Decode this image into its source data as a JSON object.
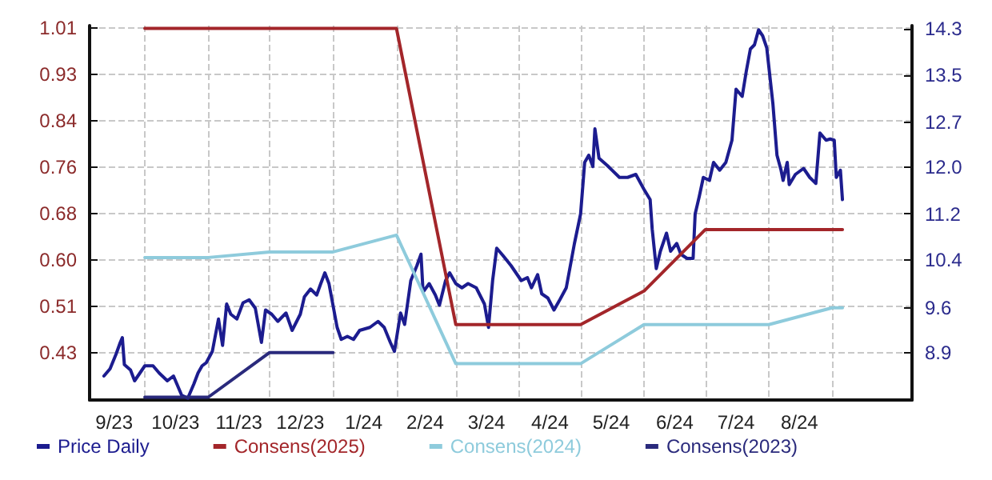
{
  "chart_data": {
    "type": "line",
    "xlim": [
      "2023-09-04",
      "2024-10-10"
    ],
    "xticks": [
      {
        "value": "2023-09-16",
        "label": "9/23"
      },
      {
        "value": "2023-10-16",
        "label": "10/23"
      },
      {
        "value": "2023-11-16",
        "label": "11/23"
      },
      {
        "value": "2023-12-16",
        "label": "12/23"
      },
      {
        "value": "2024-01-16",
        "label": "1/24"
      },
      {
        "value": "2024-02-15",
        "label": "2/24"
      },
      {
        "value": "2024-03-16",
        "label": "3/24"
      },
      {
        "value": "2024-04-16",
        "label": "4/24"
      },
      {
        "value": "2024-05-16",
        "label": "5/24"
      },
      {
        "value": "2024-06-16",
        "label": "6/24"
      },
      {
        "value": "2024-07-16",
        "label": "7/24"
      },
      {
        "value": "2024-08-16",
        "label": "8/24"
      },
      {
        "value": "2023-10-01",
        "label": null
      },
      {
        "value": "2023-11-01",
        "label": null
      },
      {
        "value": "2023-12-01",
        "label": null
      },
      {
        "value": "2024-01-01",
        "label": null
      },
      {
        "value": "2024-02-01",
        "label": null
      },
      {
        "value": "2024-03-01",
        "label": null
      },
      {
        "value": "2024-04-01",
        "label": null
      },
      {
        "value": "2024-05-01",
        "label": null
      },
      {
        "value": "2024-06-01",
        "label": null
      },
      {
        "value": "2024-07-01",
        "label": null
      },
      {
        "value": "2024-08-01",
        "label": null
      },
      {
        "value": "2024-09-01",
        "label": null
      }
    ],
    "ylim": [
      0.345,
      1.015
    ],
    "yticks": [
      0.43,
      {
        "value": 0.513,
        "label": "0.51"
      },
      {
        "value": 0.596,
        "label": "0.60"
      },
      {
        "value": 0.679,
        "label": "0.68"
      },
      {
        "value": 0.761,
        "label": "0.76"
      },
      {
        "value": 0.844,
        "label": "0.84"
      },
      {
        "value": 0.927,
        "label": "0.93"
      },
      1.01
    ],
    "y2lim": [
      8.11,
      14.35
    ],
    "y2ticks": [
      8.9,
      {
        "value": 9.64,
        "label": "9.6"
      },
      {
        "value": 10.44,
        "label": "10.4"
      },
      {
        "value": 11.21,
        "label": "11.2"
      },
      {
        "value": 11.99,
        "label": "12.0"
      },
      {
        "value": 12.74,
        "label": "12.7"
      },
      {
        "value": 13.53,
        "label": "13.5"
      },
      14.3
    ],
    "grid": true,
    "legend": "bottom",
    "marker": "none",
    "line_style": "solid",
    "series": [
      {
        "name": "Price Daily",
        "color": "#1c1c8f",
        "axis": "y2",
        "x": [
          "2023-09-11",
          "2023-09-14",
          "2023-09-17",
          "2023-09-19",
          "2023-09-20",
          "2023-09-21",
          "2023-09-24",
          "2023-09-26",
          "2023-09-28",
          "2023-10-01",
          "2023-10-05",
          "2023-10-08",
          "2023-10-12",
          "2023-10-15",
          "2023-10-19",
          "2023-10-22",
          "2023-10-25",
          "2023-10-27",
          "2023-10-29",
          "2023-10-31",
          "2023-11-03",
          "2023-11-06",
          "2023-11-08",
          "2023-11-10",
          "2023-11-12",
          "2023-11-15",
          "2023-11-18",
          "2023-11-21",
          "2023-11-24",
          "2023-11-27",
          "2023-11-29",
          "2023-12-02",
          "2023-12-05",
          "2023-12-09",
          "2023-12-12",
          "2023-12-16",
          "2023-12-18",
          "2023-12-21",
          "2023-12-24",
          "2023-12-26",
          "2023-12-28",
          "2023-12-30",
          "2024-01-03",
          "2024-01-05",
          "2024-01-08",
          "2024-01-11",
          "2024-01-14",
          "2024-01-19",
          "2024-01-23",
          "2024-01-26",
          "2024-01-29",
          "2024-01-31",
          "2024-02-03",
          "2024-02-05",
          "2024-02-08",
          "2024-02-11",
          "2024-02-13",
          "2024-02-14",
          "2024-02-17",
          "2024-02-20",
          "2024-02-22",
          "2024-02-25",
          "2024-02-27",
          "2024-03-01",
          "2024-03-04",
          "2024-03-07",
          "2024-03-11",
          "2024-03-15",
          "2024-03-17",
          "2024-03-19",
          "2024-03-21",
          "2024-03-24",
          "2024-03-28",
          "2024-04-02",
          "2024-04-05",
          "2024-04-07",
          "2024-04-10",
          "2024-04-12",
          "2024-04-15",
          "2024-04-18",
          "2024-04-21",
          "2024-04-24",
          "2024-04-28",
          "2024-05-01",
          "2024-05-03",
          "2024-05-05",
          "2024-05-07",
          "2024-05-08",
          "2024-05-10",
          "2024-05-14",
          "2024-05-20",
          "2024-05-24",
          "2024-05-28",
          "2024-06-01",
          "2024-06-04",
          "2024-06-05",
          "2024-06-07",
          "2024-06-09",
          "2024-06-12",
          "2024-06-14",
          "2024-06-17",
          "2024-06-19",
          "2024-06-22",
          "2024-06-25",
          "2024-06-26",
          "2024-06-28",
          "2024-06-30",
          "2024-07-03",
          "2024-07-05",
          "2024-07-08",
          "2024-07-11",
          "2024-07-14",
          "2024-07-16",
          "2024-07-19",
          "2024-07-21",
          "2024-07-23",
          "2024-07-25",
          "2024-07-27",
          "2024-07-29",
          "2024-07-31",
          "2024-08-03",
          "2024-08-05",
          "2024-08-07",
          "2024-08-08",
          "2024-08-10",
          "2024-08-11",
          "2024-08-14",
          "2024-08-18",
          "2024-08-21",
          "2024-08-24",
          "2024-08-26",
          "2024-08-29",
          "2024-08-31",
          "2024-09-02",
          "2024-09-03",
          "2024-09-05",
          "2024-09-06"
        ],
        "values": [
          8.51,
          8.63,
          8.88,
          9.07,
          9.15,
          8.7,
          8.61,
          8.43,
          8.53,
          8.68,
          8.68,
          8.56,
          8.43,
          8.51,
          8.19,
          8.14,
          8.38,
          8.56,
          8.68,
          8.73,
          8.92,
          9.46,
          9.02,
          9.71,
          9.54,
          9.46,
          9.73,
          9.78,
          9.64,
          9.07,
          9.61,
          9.54,
          9.42,
          9.56,
          9.27,
          9.54,
          9.83,
          9.96,
          9.86,
          10.05,
          10.23,
          10.05,
          9.32,
          9.12,
          9.17,
          9.12,
          9.27,
          9.32,
          9.42,
          9.32,
          9.07,
          8.92,
          9.56,
          9.37,
          10.1,
          10.35,
          10.54,
          9.91,
          10.05,
          9.86,
          9.69,
          10.1,
          10.23,
          10.05,
          9.98,
          10.05,
          9.98,
          9.71,
          9.32,
          10.1,
          10.64,
          10.52,
          10.35,
          10.1,
          10.15,
          9.98,
          10.2,
          9.88,
          9.81,
          9.61,
          9.79,
          9.98,
          10.72,
          11.21,
          12.07,
          12.19,
          12.0,
          12.63,
          12.14,
          12.02,
          11.82,
          11.82,
          11.87,
          11.62,
          11.45,
          10.96,
          10.3,
          10.59,
          10.89,
          10.59,
          10.72,
          10.54,
          10.47,
          10.47,
          11.21,
          11.5,
          11.82,
          11.77,
          12.07,
          11.94,
          12.07,
          12.44,
          13.29,
          13.17,
          13.59,
          13.96,
          14.03,
          14.28,
          14.18,
          13.98,
          13.05,
          12.19,
          11.94,
          11.77,
          12.07,
          11.7,
          11.87,
          11.97,
          11.82,
          11.72,
          12.56,
          12.44,
          12.46,
          12.44,
          11.82,
          11.94,
          11.45
        ]
      },
      {
        "name": "Consens(2025)",
        "color": "#a3262a",
        "x": [
          "2023-10-01",
          "2024-02-01",
          "2024-03-01",
          "2024-05-01",
          "2024-06-01",
          "2024-07-01",
          "2024-09-06"
        ],
        "values": [
          1.01,
          1.01,
          0.48,
          0.48,
          0.54,
          0.65,
          0.65
        ]
      },
      {
        "name": "Consens(2024)",
        "color": "#8ecbdc",
        "x": [
          "2023-10-01",
          "2023-11-01",
          "2023-12-01",
          "2024-01-01",
          "2024-02-01",
          "2024-03-01",
          "2024-05-01",
          "2024-06-01",
          "2024-08-01",
          "2024-09-01",
          "2024-09-06"
        ],
        "values": [
          0.6,
          0.6,
          0.61,
          0.61,
          0.64,
          0.41,
          0.41,
          0.48,
          0.48,
          0.51,
          0.51
        ]
      },
      {
        "name": "Consens(2023)",
        "color": "#2a2a7c",
        "x": [
          "2023-10-01",
          "2023-11-01",
          "2023-12-01",
          "2024-01-01"
        ],
        "values": [
          0.35,
          0.35,
          0.43,
          0.43
        ]
      }
    ]
  }
}
